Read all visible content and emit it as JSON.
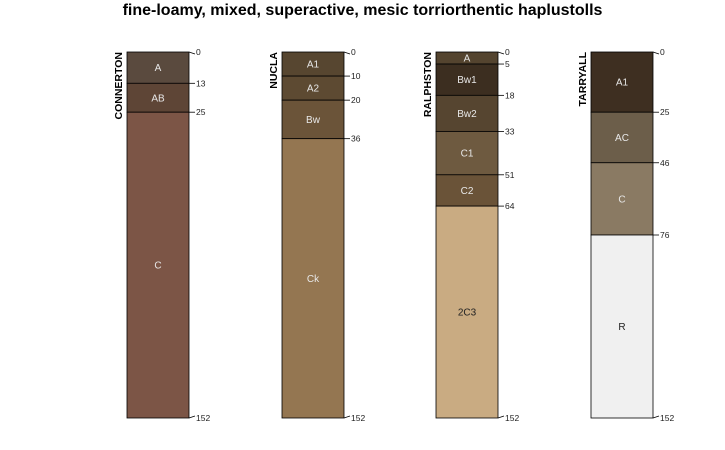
{
  "chart_data": {
    "type": "soil-profile-sketch",
    "title": "fine-loamy, mixed, superactive, mesic torriorthentic haplustolls",
    "depth_range": [
      0,
      152
    ],
    "profiles": [
      {
        "name": "CONNERTON",
        "horizons": [
          {
            "name": "A",
            "top": 0,
            "bottom": 13,
            "color": "#5a4a3e",
            "text_color": "#e8e8e8"
          },
          {
            "name": "AB",
            "top": 13,
            "bottom": 25,
            "color": "#5e4536",
            "text_color": "#e8e8e8"
          },
          {
            "name": "C",
            "top": 25,
            "bottom": 152,
            "color": "#7c5546",
            "text_color": "#e8e8e8"
          }
        ],
        "depth_labels": [
          "0",
          "13",
          "25",
          "152"
        ]
      },
      {
        "name": "NUCLA",
        "horizons": [
          {
            "name": "A1",
            "top": 0,
            "bottom": 10,
            "color": "#574630",
            "text_color": "#e8e8e8"
          },
          {
            "name": "A2",
            "top": 10,
            "bottom": 20,
            "color": "#5d4a32",
            "text_color": "#e8e8e8"
          },
          {
            "name": "Bw",
            "top": 20,
            "bottom": 36,
            "color": "#6b5439",
            "text_color": "#e8e8e8"
          },
          {
            "name": "Ck",
            "top": 36,
            "bottom": 152,
            "color": "#947651",
            "text_color": "#e8e8e8"
          }
        ],
        "depth_labels": [
          "0",
          "10",
          "20",
          "36",
          "152"
        ]
      },
      {
        "name": "RALPHSTON",
        "horizons": [
          {
            "name": "A",
            "top": 0,
            "bottom": 5,
            "color": "#54442f",
            "text_color": "#e8e8e8"
          },
          {
            "name": "Bw1",
            "top": 5,
            "bottom": 18,
            "color": "#3c2e20",
            "text_color": "#e8e8e8"
          },
          {
            "name": "Bw2",
            "top": 18,
            "bottom": 33,
            "color": "#564530",
            "text_color": "#e8e8e8"
          },
          {
            "name": "C1",
            "top": 33,
            "bottom": 51,
            "color": "#6e5a40",
            "text_color": "#e8e8e8"
          },
          {
            "name": "C2",
            "top": 51,
            "bottom": 64,
            "color": "#6a5338",
            "text_color": "#e8e8e8"
          },
          {
            "name": "2C3",
            "top": 64,
            "bottom": 152,
            "color": "#c9ab82",
            "text_color": "#222222"
          }
        ],
        "depth_labels": [
          "0",
          "5",
          "18",
          "33",
          "51",
          "64",
          "152"
        ]
      },
      {
        "name": "TARRYALL",
        "horizons": [
          {
            "name": "A1",
            "top": 0,
            "bottom": 25,
            "color": "#3e2f21",
            "text_color": "#e8e8e8"
          },
          {
            "name": "AC",
            "top": 25,
            "bottom": 46,
            "color": "#6c5e4a",
            "text_color": "#e8e8e8"
          },
          {
            "name": "C",
            "top": 46,
            "bottom": 76,
            "color": "#8a7a63",
            "text_color": "#e8e8e8"
          },
          {
            "name": "R",
            "top": 76,
            "bottom": 152,
            "color": "#f0f0f0",
            "text_color": "#222222"
          }
        ],
        "depth_labels": [
          "0",
          "25",
          "46",
          "76",
          "152"
        ]
      }
    ]
  }
}
